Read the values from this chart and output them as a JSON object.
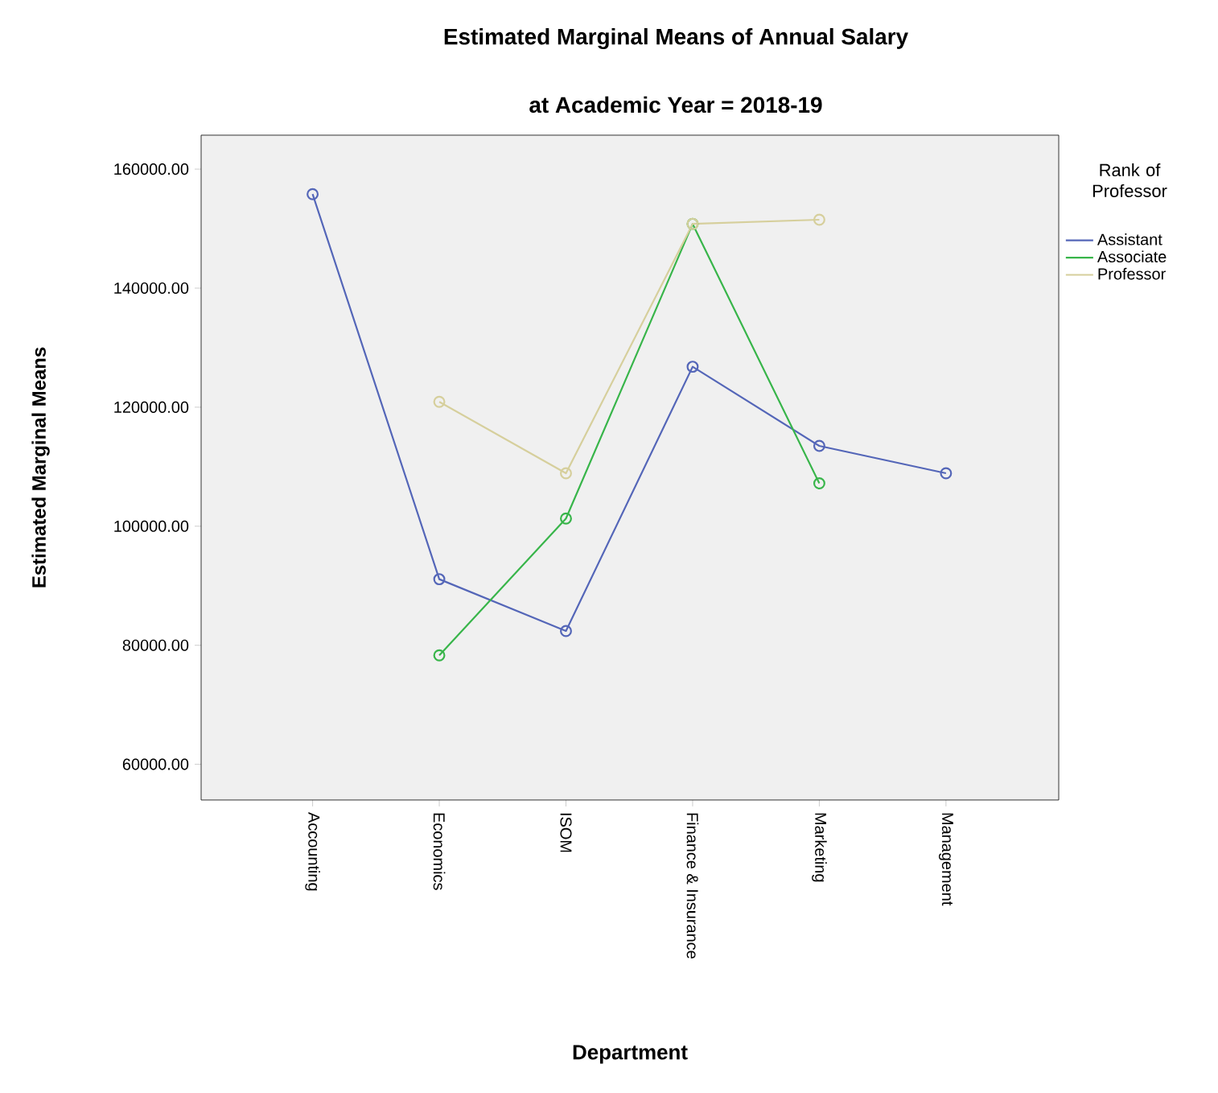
{
  "chart_data": {
    "type": "line",
    "title": "Estimated Marginal Means of Annual Salary",
    "subtitle": "at Academic Year = 2018-19",
    "xlabel": "Department",
    "ylabel": "Estimated Marginal Means",
    "legend_title": "Rank of Professor",
    "categories": [
      "Accounting",
      "Economics",
      "ISOM",
      "Finance & Insurance",
      "Marketing",
      "Management"
    ],
    "series": [
      {
        "name": "Assistant",
        "color": "#5466b8",
        "values": [
          155800,
          91100,
          82400,
          126800,
          113500,
          108900
        ]
      },
      {
        "name": "Associate",
        "color": "#38b54a",
        "values": [
          null,
          78300,
          101300,
          150800,
          107200,
          null
        ]
      },
      {
        "name": "Professor",
        "color": "#d6cf9c",
        "values": [
          null,
          120900,
          108900,
          150800,
          151500,
          null
        ]
      }
    ],
    "ylim": [
      54000,
      165700
    ],
    "yticks": [
      {
        "value": 60000,
        "label": "60000.00"
      },
      {
        "value": 80000,
        "label": "80000.00"
      },
      {
        "value": 100000,
        "label": "100000.00"
      },
      {
        "value": 120000,
        "label": "120000.00"
      },
      {
        "value": 140000,
        "label": "140000.00"
      },
      {
        "value": 160000,
        "label": "160000.00"
      }
    ],
    "grid": false,
    "legend": "right",
    "marker": "circle",
    "line_style": "solid"
  }
}
